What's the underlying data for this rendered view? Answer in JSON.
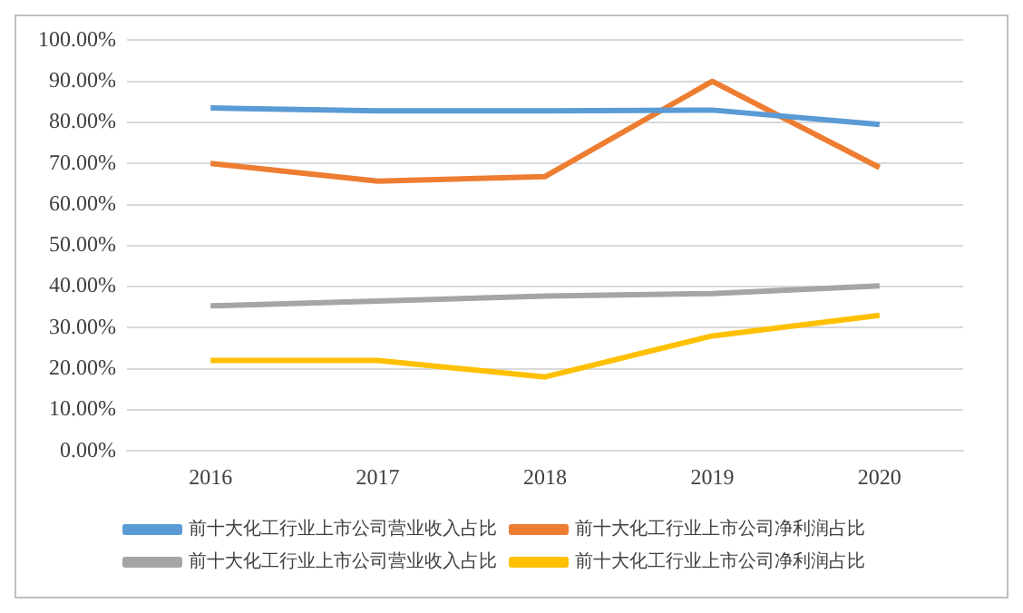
{
  "chart_data": {
    "type": "line",
    "categories": [
      "2016",
      "2017",
      "2018",
      "2019",
      "2020"
    ],
    "series": [
      {
        "name": "前十大化工行业上市公司营业收入占比",
        "color": "#5b9bd5",
        "values": [
          83.5,
          82.8,
          82.8,
          83,
          79.5
        ]
      },
      {
        "name": "前十大化工行业上市公司净利润占比",
        "color": "#ed7d31",
        "values": [
          70,
          65.7,
          66.8,
          90,
          69
        ]
      },
      {
        "name": "前十大化工行业上市公司营业收入占比",
        "color": "#a5a5a5",
        "values": [
          35.3,
          36.5,
          37.7,
          38.3,
          40.2
        ]
      },
      {
        "name": "前十大化工行业上市公司净利润占比",
        "color": "#ffc000",
        "values": [
          22,
          22,
          18,
          28,
          33
        ]
      }
    ],
    "ylim": [
      0,
      100
    ],
    "yticks": [
      {
        "value": 0,
        "label": "0.00%"
      },
      {
        "value": 10,
        "label": "10.00%"
      },
      {
        "value": 20,
        "label": "20.00%"
      },
      {
        "value": 30,
        "label": "30.00%"
      },
      {
        "value": 40,
        "label": "40.00%"
      },
      {
        "value": 50,
        "label": "50.00%"
      },
      {
        "value": 60,
        "label": "60.00%"
      },
      {
        "value": 70,
        "label": "70.00%"
      },
      {
        "value": 80,
        "label": "80.00%"
      },
      {
        "value": 90,
        "label": "90.00%"
      },
      {
        "value": 100,
        "label": "100.00%"
      }
    ],
    "grid": "y",
    "legend": "bottom",
    "marker": "none",
    "line_style": "solid"
  }
}
